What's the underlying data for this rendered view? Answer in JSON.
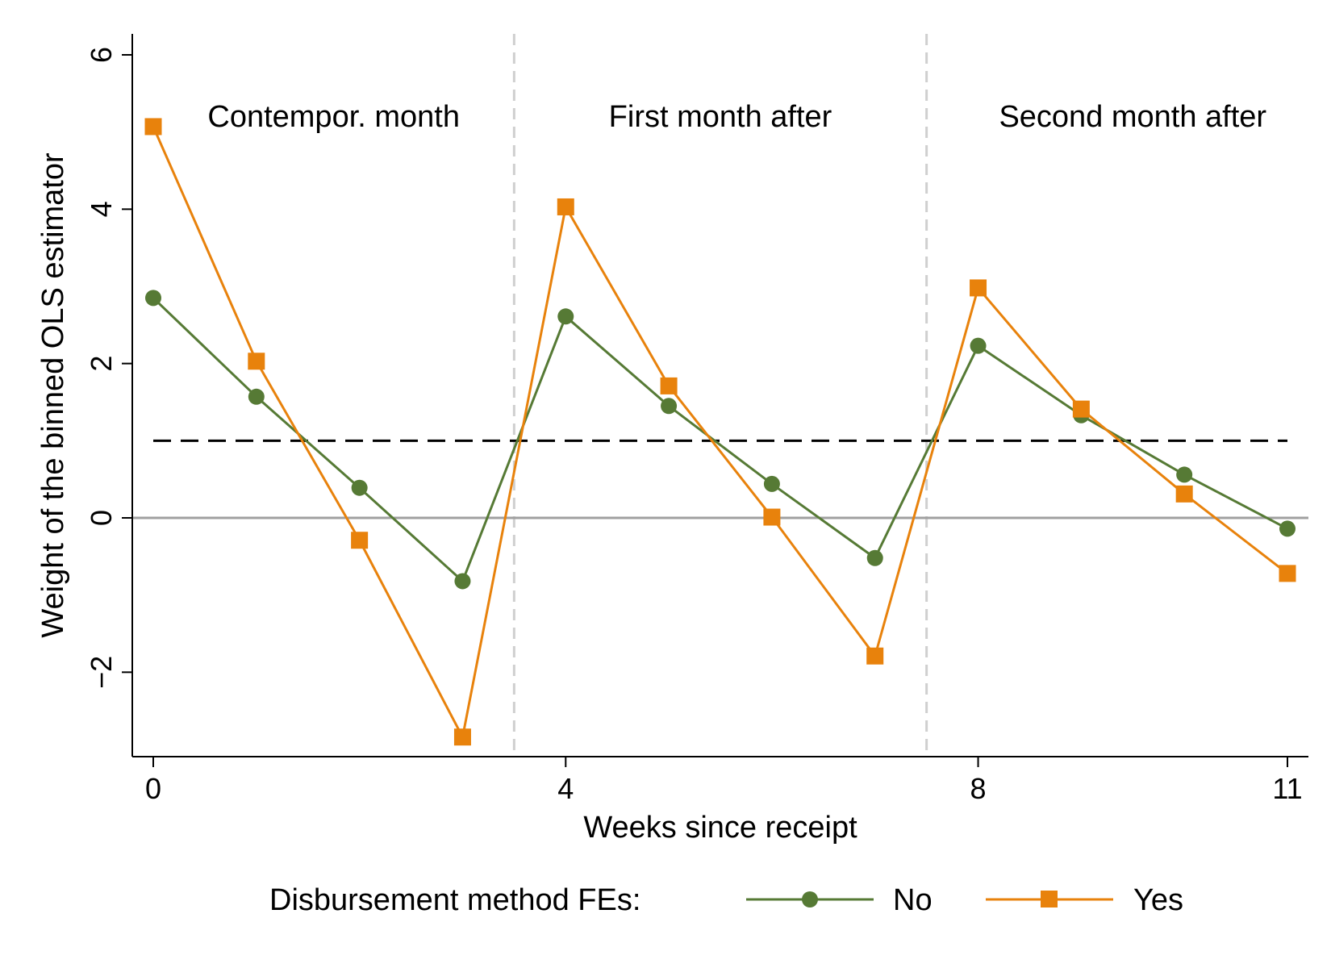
{
  "chart_data": {
    "type": "line",
    "title": "",
    "xlabel": "Weeks since receipt",
    "ylabel": "Weight of the binned OLS estimator",
    "xlim": [
      -0.2,
      11.2
    ],
    "ylim": [
      -3.1,
      6.3
    ],
    "x_ticks": [
      0,
      4,
      8,
      11
    ],
    "y_ticks": [
      -2,
      0,
      2,
      4,
      6
    ],
    "x_tick_labels": [
      "0",
      "4",
      "8",
      "11"
    ],
    "y_tick_labels": [
      "−2",
      "0",
      "2",
      "4",
      "6"
    ],
    "x": [
      0,
      1,
      2,
      3,
      4,
      5,
      6,
      7,
      8,
      9,
      10,
      11
    ],
    "series": [
      {
        "name": "No",
        "marker": "circle",
        "color": "#567a35",
        "values": [
          2.85,
          1.57,
          0.39,
          -0.82,
          2.61,
          1.45,
          0.44,
          -0.52,
          2.23,
          1.33,
          0.56,
          -0.14
        ]
      },
      {
        "name": "Yes",
        "marker": "square",
        "color": "#e8820c",
        "values": [
          5.07,
          2.03,
          -0.29,
          -2.84,
          4.03,
          1.71,
          0.01,
          -1.79,
          2.98,
          1.41,
          0.31,
          -0.72
        ]
      }
    ],
    "reference_lines": {
      "dashed_y": 1,
      "solid_y": 0,
      "vertical_dashed_x": [
        3.5,
        7.5
      ]
    },
    "section_labels": [
      {
        "text": "Contempor. month",
        "x_center": 1.75
      },
      {
        "text": "First month after",
        "x_center": 5.5
      },
      {
        "text": "Second month after",
        "x_center": 9.5
      }
    ],
    "legend": {
      "title": "Disbursement method FEs:",
      "position": "bottom",
      "entries": [
        "No",
        "Yes"
      ]
    },
    "grid": false
  },
  "colors": {
    "no_series": "#567a35",
    "yes_series": "#e8820c",
    "zero_line": "#a0a0a0",
    "divider": "#cfcfcf",
    "dashed_reference": "#000000"
  }
}
